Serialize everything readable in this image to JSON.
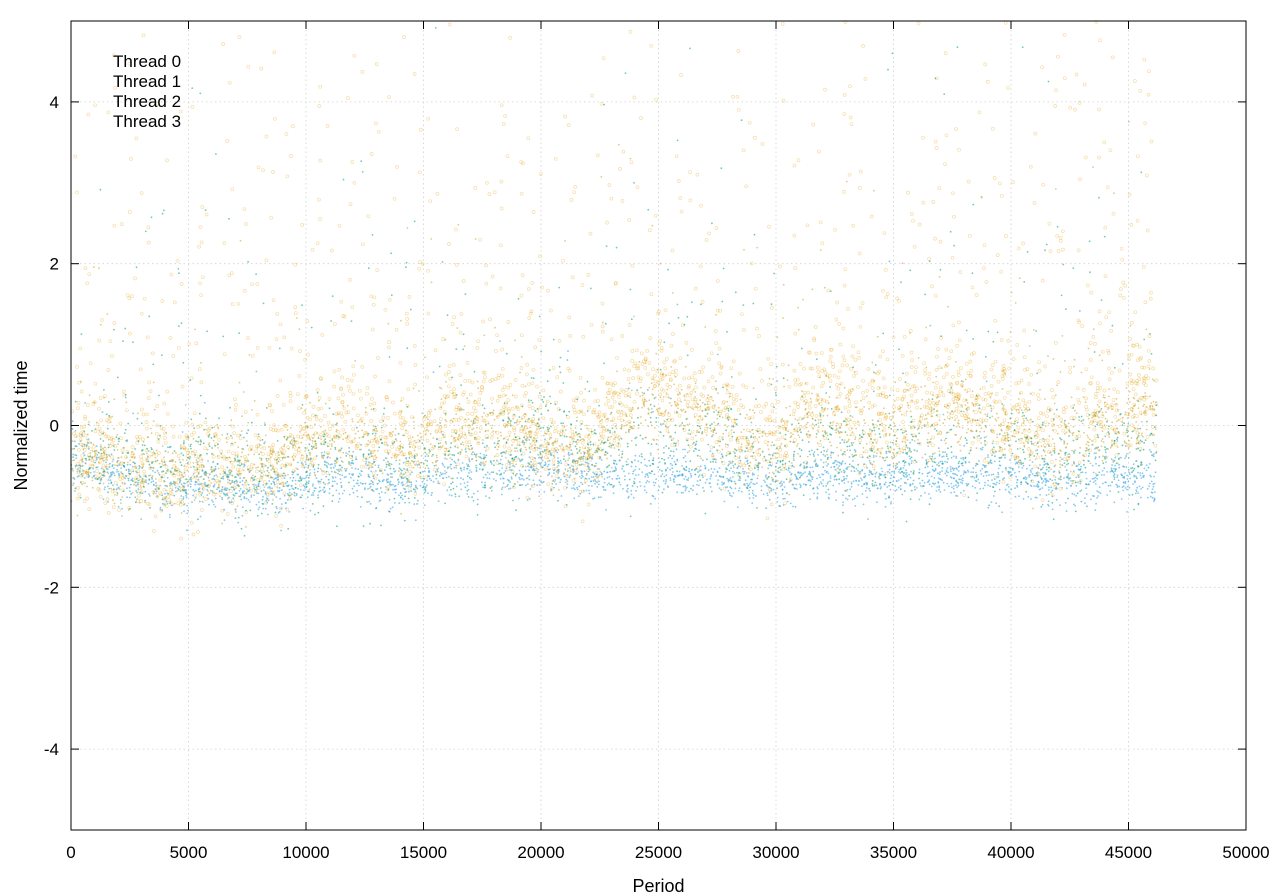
{
  "chart_data": {
    "type": "scatter",
    "title": "",
    "xlabel": "Period",
    "ylabel": "Normalized time",
    "xlim": [
      0,
      50000
    ],
    "ylim": [
      -5,
      5
    ],
    "xticks": [
      0,
      5000,
      10000,
      15000,
      20000,
      25000,
      30000,
      35000,
      40000,
      45000,
      50000
    ],
    "yticks": [
      -4,
      -2,
      0,
      2,
      4
    ],
    "grid": true,
    "legend_position": "top-left",
    "n_periods": 46200,
    "series": [
      {
        "name": "Thread 0",
        "color": "#009e73",
        "marker": "dot",
        "x": [
          0,
          2000,
          4000,
          6000,
          8000,
          10000,
          12000,
          14000,
          16000,
          18000,
          20000,
          22000,
          24000,
          26000,
          28000,
          30000,
          32000,
          34000,
          36000,
          38000,
          40000,
          42000,
          44000,
          46000
        ],
        "y": [
          -0.3,
          -0.3,
          -0.5,
          -0.4,
          -0.7,
          -0.5,
          -0.4,
          -0.5,
          -0.4,
          -0.4,
          0.1,
          -0.2,
          -0.3,
          -0.3,
          -0.3,
          -0.4,
          -0.2,
          -0.5,
          -0.3,
          -0.3,
          -0.3,
          -0.4,
          -0.3,
          -0.3
        ]
      },
      {
        "name": "Thread 1",
        "color": "#56b4e9",
        "marker": "dot",
        "x": [
          0,
          2000,
          4000,
          6000,
          8000,
          10000,
          12000,
          14000,
          16000,
          18000,
          20000,
          22000,
          24000,
          26000,
          28000,
          30000,
          32000,
          34000,
          36000,
          38000,
          40000,
          42000,
          44000,
          46000
        ],
        "y": [
          -0.5,
          -0.6,
          -0.8,
          -0.7,
          -0.8,
          -0.7,
          -0.6,
          -0.7,
          -0.6,
          -0.6,
          -0.5,
          -0.6,
          -0.6,
          -0.6,
          -0.6,
          -0.7,
          -0.6,
          -0.7,
          -0.6,
          -0.6,
          -0.6,
          -0.7,
          -0.6,
          -0.7
        ]
      },
      {
        "name": "Thread 2",
        "color": "#e69f00",
        "marker": "circle",
        "x": [
          0,
          2000,
          4000,
          6000,
          8000,
          10000,
          12000,
          14000,
          16000,
          18000,
          20000,
          22000,
          24000,
          26000,
          28000,
          30000,
          32000,
          34000,
          36000,
          38000,
          40000,
          42000,
          44000,
          46000
        ],
        "y": [
          -0.3,
          -0.4,
          -0.6,
          -0.5,
          -0.5,
          -0.2,
          0.2,
          -0.3,
          0.1,
          0.2,
          -0.2,
          -0.3,
          0.6,
          0.4,
          0.1,
          -0.3,
          0.5,
          0.1,
          0.3,
          0.4,
          0.1,
          -0.2,
          0.2,
          0.4
        ]
      },
      {
        "name": "Thread 3",
        "color": "#c9a227",
        "marker": "dot",
        "x": [
          0,
          2000,
          4000,
          6000,
          8000,
          10000,
          12000,
          14000,
          16000,
          18000,
          20000,
          22000,
          24000,
          26000,
          28000,
          30000,
          32000,
          34000,
          36000,
          38000,
          40000,
          42000,
          44000,
          46000
        ],
        "y": [
          -0.4,
          -0.5,
          -0.6,
          -0.5,
          -0.5,
          -0.3,
          -0.2,
          -0.4,
          -0.2,
          -0.1,
          -0.3,
          -0.4,
          0.2,
          0.2,
          -0.1,
          -0.4,
          0.1,
          -0.2,
          0.0,
          0.1,
          -0.1,
          -0.3,
          0.0,
          0.1
        ]
      }
    ]
  }
}
